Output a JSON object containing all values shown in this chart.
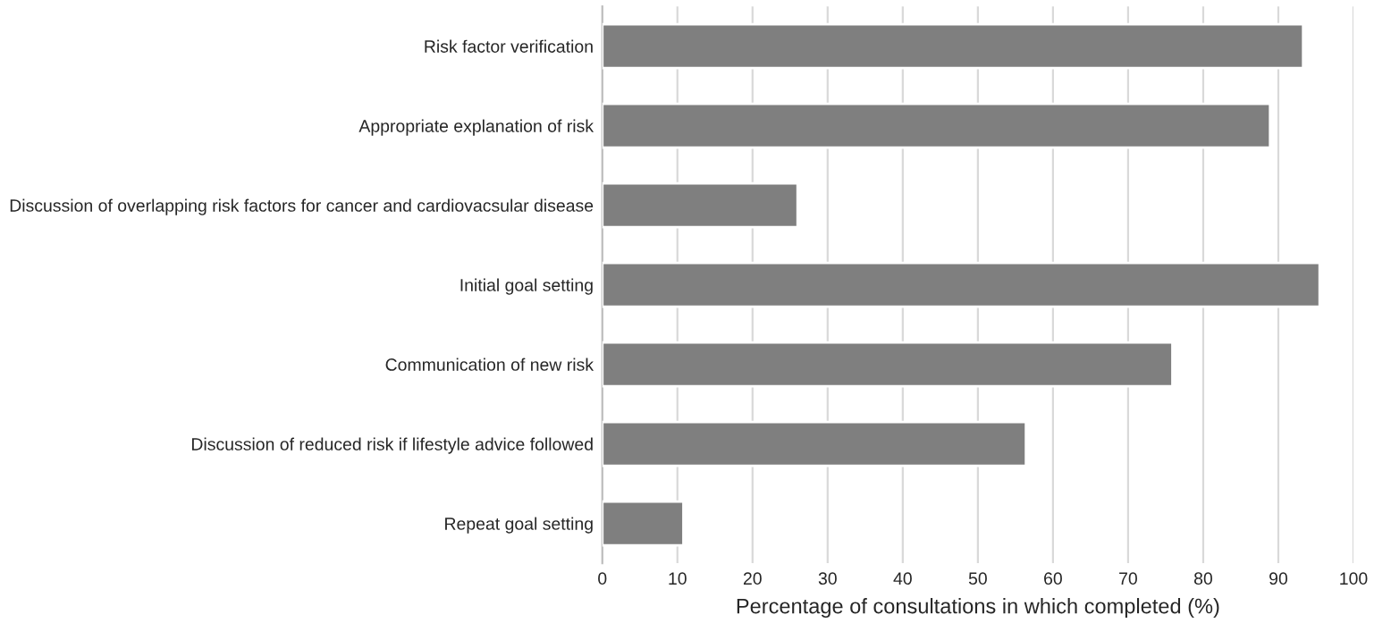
{
  "chart_data": {
    "type": "bar",
    "orientation": "horizontal",
    "xlabel": "Percentage of consultations in which completed (%)",
    "categories": [
      "Risk factor verification",
      "Appropriate explanation of risk",
      "Discussion of overlapping risk factors for cancer and cardiovacsular disease",
      "Initial goal setting",
      "Communication of new risk",
      "Discussion of reduced risk if lifestyle advice followed",
      "Repeat goal setting"
    ],
    "values": [
      93.3,
      88.9,
      26.0,
      95.5,
      75.9,
      56.4,
      10.8
    ],
    "color": "#7f7f7f",
    "xlim": [
      0,
      100
    ],
    "xticks": [
      0,
      10,
      20,
      30,
      40,
      50,
      60,
      70,
      80,
      90,
      100
    ],
    "grid": "x",
    "legend": false
  }
}
